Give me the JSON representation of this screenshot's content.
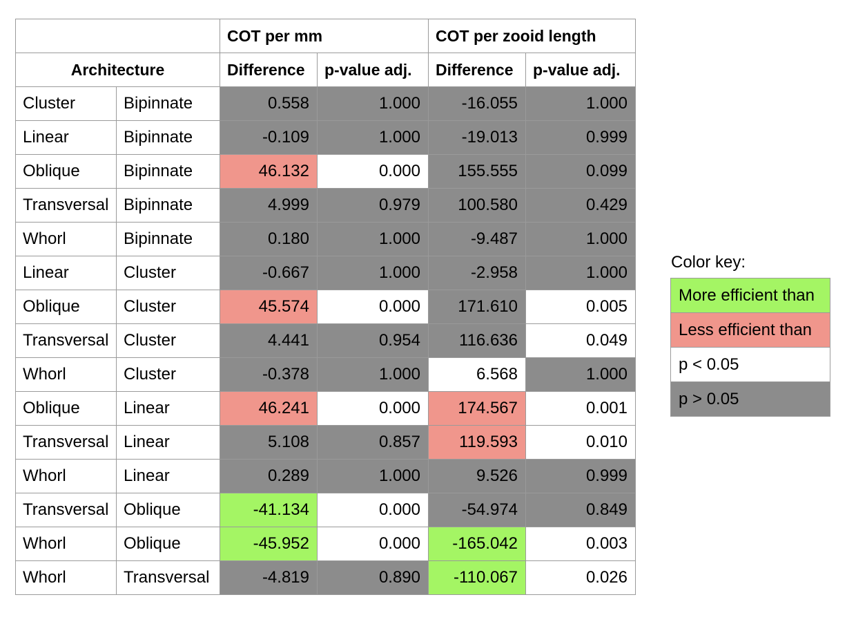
{
  "table": {
    "group_headers": [
      "COT per mm",
      "COT per zooid length"
    ],
    "arch_header": "Architecture",
    "sub_headers": [
      "Difference",
      "p-value adj.",
      "Difference",
      "p-value adj."
    ],
    "rows": [
      {
        "a": "Cluster",
        "b": "Bipinnate",
        "d1": "0.558",
        "p1": "1.000",
        "d2": "-16.055",
        "p2": "1.000",
        "c": [
          "g",
          "g",
          "g",
          "g"
        ]
      },
      {
        "a": "Linear",
        "b": "Bipinnate",
        "d1": "-0.109",
        "p1": "1.000",
        "d2": "-19.013",
        "p2": "0.999",
        "c": [
          "g",
          "g",
          "g",
          "g"
        ]
      },
      {
        "a": "Oblique",
        "b": "Bipinnate",
        "d1": "46.132",
        "p1": "0.000",
        "d2": "155.555",
        "p2": "0.099",
        "c": [
          "r",
          "w",
          "g",
          "g"
        ]
      },
      {
        "a": "Transversal",
        "b": "Bipinnate",
        "d1": "4.999",
        "p1": "0.979",
        "d2": "100.580",
        "p2": "0.429",
        "c": [
          "g",
          "g",
          "g",
          "g"
        ]
      },
      {
        "a": "Whorl",
        "b": "Bipinnate",
        "d1": "0.180",
        "p1": "1.000",
        "d2": "-9.487",
        "p2": "1.000",
        "c": [
          "g",
          "g",
          "g",
          "g"
        ]
      },
      {
        "a": "Linear",
        "b": "Cluster",
        "d1": "-0.667",
        "p1": "1.000",
        "d2": "-2.958",
        "p2": "1.000",
        "c": [
          "g",
          "g",
          "g",
          "g"
        ]
      },
      {
        "a": "Oblique",
        "b": "Cluster",
        "d1": "45.574",
        "p1": "0.000",
        "d2": "171.610",
        "p2": "0.005",
        "c": [
          "r",
          "w",
          "g",
          "w"
        ]
      },
      {
        "a": "Transversal",
        "b": "Cluster",
        "d1": "4.441",
        "p1": "0.954",
        "d2": "116.636",
        "p2": "0.049",
        "c": [
          "g",
          "g",
          "g",
          "w"
        ]
      },
      {
        "a": "Whorl",
        "b": "Cluster",
        "d1": "-0.378",
        "p1": "1.000",
        "d2": "6.568",
        "p2": "1.000",
        "c": [
          "g",
          "g",
          "w",
          "g"
        ]
      },
      {
        "a": "Oblique",
        "b": "Linear",
        "d1": "46.241",
        "p1": "0.000",
        "d2": "174.567",
        "p2": "0.001",
        "c": [
          "r",
          "w",
          "r",
          "w"
        ]
      },
      {
        "a": "Transversal",
        "b": "Linear",
        "d1": "5.108",
        "p1": "0.857",
        "d2": "119.593",
        "p2": "0.010",
        "c": [
          "g",
          "g",
          "r",
          "w"
        ]
      },
      {
        "a": "Whorl",
        "b": "Linear",
        "d1": "0.289",
        "p1": "1.000",
        "d2": "9.526",
        "p2": "0.999",
        "c": [
          "g",
          "g",
          "g",
          "g"
        ]
      },
      {
        "a": "Transversal",
        "b": "Oblique",
        "d1": "-41.134",
        "p1": "0.000",
        "d2": "-54.974",
        "p2": "0.849",
        "c": [
          "gr",
          "w",
          "g",
          "g"
        ]
      },
      {
        "a": "Whorl",
        "b": "Oblique",
        "d1": "-45.952",
        "p1": "0.000",
        "d2": "-165.042",
        "p2": "0.003",
        "c": [
          "gr",
          "w",
          "gr",
          "w"
        ]
      },
      {
        "a": "Whorl",
        "b": "Transversal",
        "d1": "-4.819",
        "p1": "0.890",
        "d2": "-110.067",
        "p2": "0.026",
        "c": [
          "g",
          "g",
          "gr",
          "w"
        ]
      }
    ]
  },
  "key": {
    "title": "Color key:",
    "items": [
      {
        "label": "More efficient than",
        "color": "#a4f564"
      },
      {
        "label": "Less efficient than",
        "color": "#f0968c"
      },
      {
        "label": "p < 0.05",
        "color": "#ffffff"
      },
      {
        "label": "p > 0.05",
        "color": "#8c8c8c"
      }
    ]
  }
}
